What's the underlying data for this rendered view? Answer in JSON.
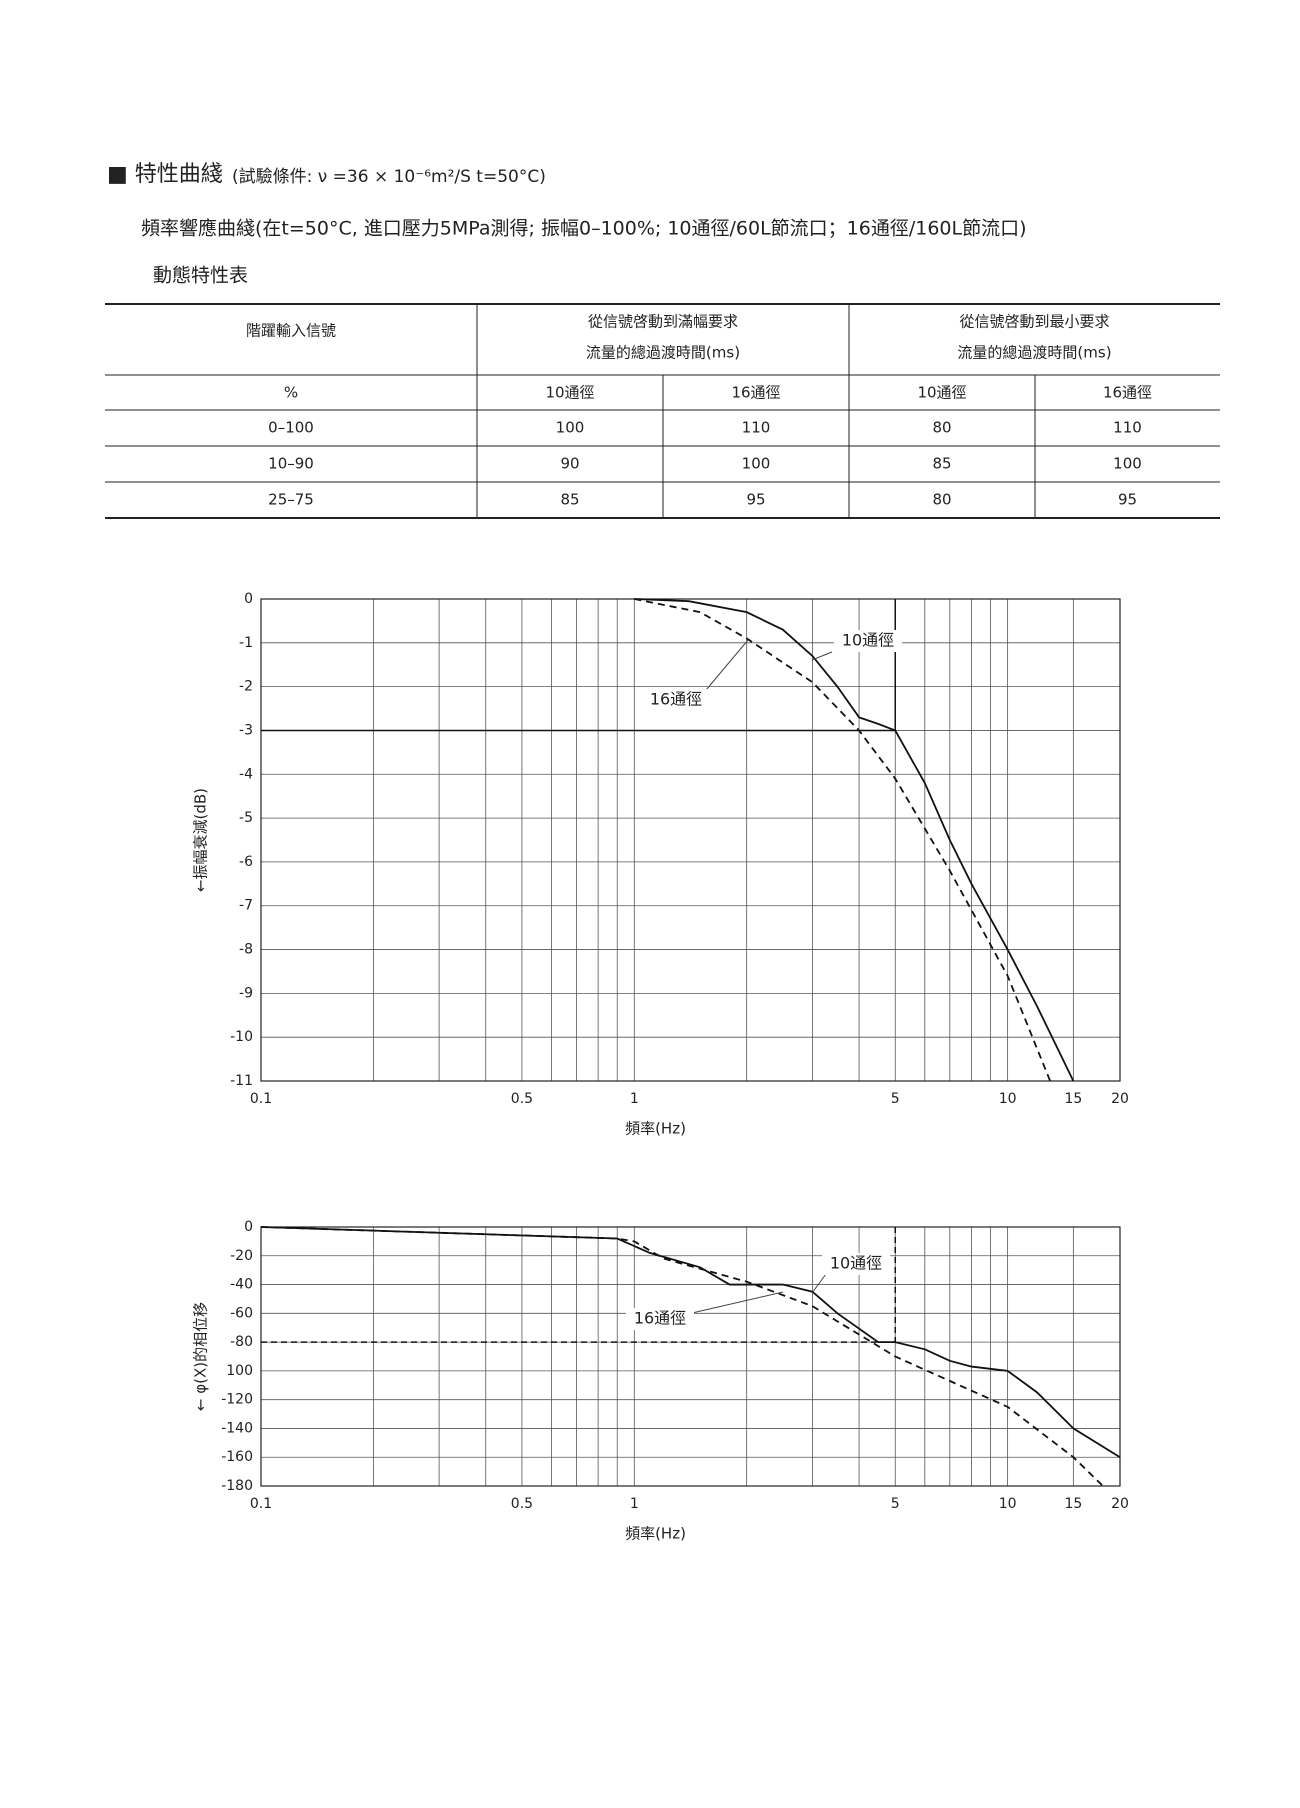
{
  "header": {
    "title": "■ 特性曲綫",
    "conditions": "(試驗條件: ν =36 × 10⁻⁶m²/S   t=50°C)",
    "subtitle": "頻率響應曲綫(在t=50°C, 進口壓力5MPa測得; 振幅0–100%; 10通徑/60L節流口；16通徑/160L節流口)",
    "table_title": "動態特性表"
  },
  "table": {
    "header": [
      "階躍輸入信號",
      [
        "從信號啓動到滿幅要求",
        "流量的總過渡時間(ms)"
      ],
      [
        "從信號啓動到最小要求",
        "流量的總過渡時間(ms)"
      ]
    ],
    "subheader": [
      "%",
      "10通徑",
      "16通徑",
      "10通徑",
      "16通徑"
    ],
    "rows": [
      [
        "0–100",
        100,
        110,
        80,
        110
      ],
      [
        "10–90",
        90,
        100,
        85,
        100
      ],
      [
        "25–75",
        85,
        95,
        80,
        95
      ]
    ]
  },
  "chart_data": [
    {
      "type": "line",
      "x_label": "頻率(Hz)",
      "y_label": "←振幅衰減(dB)",
      "log_x": true,
      "grid": true,
      "xlim": [
        0.1,
        20
      ],
      "xticks": [
        0.1,
        0.5,
        1,
        5,
        10,
        15,
        20
      ],
      "ylim": [
        -11,
        0
      ],
      "yticks": [
        0,
        -1,
        -2,
        -3,
        -4,
        -5,
        -6,
        -7,
        -8,
        -9,
        -10,
        -11
      ],
      "ref": {
        "x": 5,
        "y": -3,
        "dash": false
      },
      "series": [
        {
          "name": "10通徑",
          "color": "#111111",
          "dash": false,
          "x": [
            1,
            1.4,
            2,
            2.5,
            3,
            3.5,
            4,
            4.5,
            5,
            6,
            7,
            8,
            10,
            12,
            15
          ],
          "values": [
            0,
            -0.05,
            -0.3,
            -0.7,
            -1.3,
            -2,
            -2.7,
            -2.85,
            -3,
            -4.2,
            -5.5,
            -6.5,
            -8,
            -9.3,
            -11
          ]
        },
        {
          "name": "16通徑",
          "color": "#111111",
          "dash": true,
          "x": [
            1,
            1.5,
            2,
            3,
            4,
            5,
            7,
            10,
            13
          ],
          "values": [
            0,
            -0.3,
            -0.9,
            -1.9,
            -3,
            -4.1,
            -6.2,
            -8.6,
            -11
          ]
        }
      ]
    },
    {
      "type": "line",
      "x_label": "頻率(Hz)",
      "y_label": "← φ(X)的相位移",
      "log_x": true,
      "grid": true,
      "xlim": [
        0.1,
        20
      ],
      "xticks": [
        0.1,
        0.5,
        1,
        5,
        10,
        15,
        20
      ],
      "ylim": [
        -180,
        0
      ],
      "yticks": [
        0,
        -20,
        -40,
        -60,
        -80,
        {
          "value": -100,
          "label": "100"
        },
        -120,
        -140,
        -160,
        -180
      ],
      "ref": {
        "x": 5,
        "y": -80,
        "dash": true
      },
      "series": [
        {
          "name": "10通徑",
          "color": "#111111",
          "dash": false,
          "x": [
            0.1,
            0.9,
            1.1,
            1.5,
            1.8,
            2.5,
            3,
            3.5,
            4.5,
            5,
            6,
            7,
            8,
            10,
            12,
            15,
            20
          ],
          "values": [
            0,
            -8,
            -18,
            -28,
            -40,
            -40,
            -45,
            -60,
            -80,
            -80,
            -85,
            -93,
            -97,
            -100,
            -115,
            -140,
            -160
          ]
        },
        {
          "name": "16通徑",
          "color": "#111111",
          "dash": true,
          "x": [
            0.1,
            0.9,
            1,
            1.2,
            2,
            3,
            5,
            10,
            15,
            18
          ],
          "values": [
            0,
            -8,
            -10,
            -22,
            -38,
            -55,
            -90,
            -125,
            -160,
            -180
          ]
        }
      ]
    }
  ]
}
